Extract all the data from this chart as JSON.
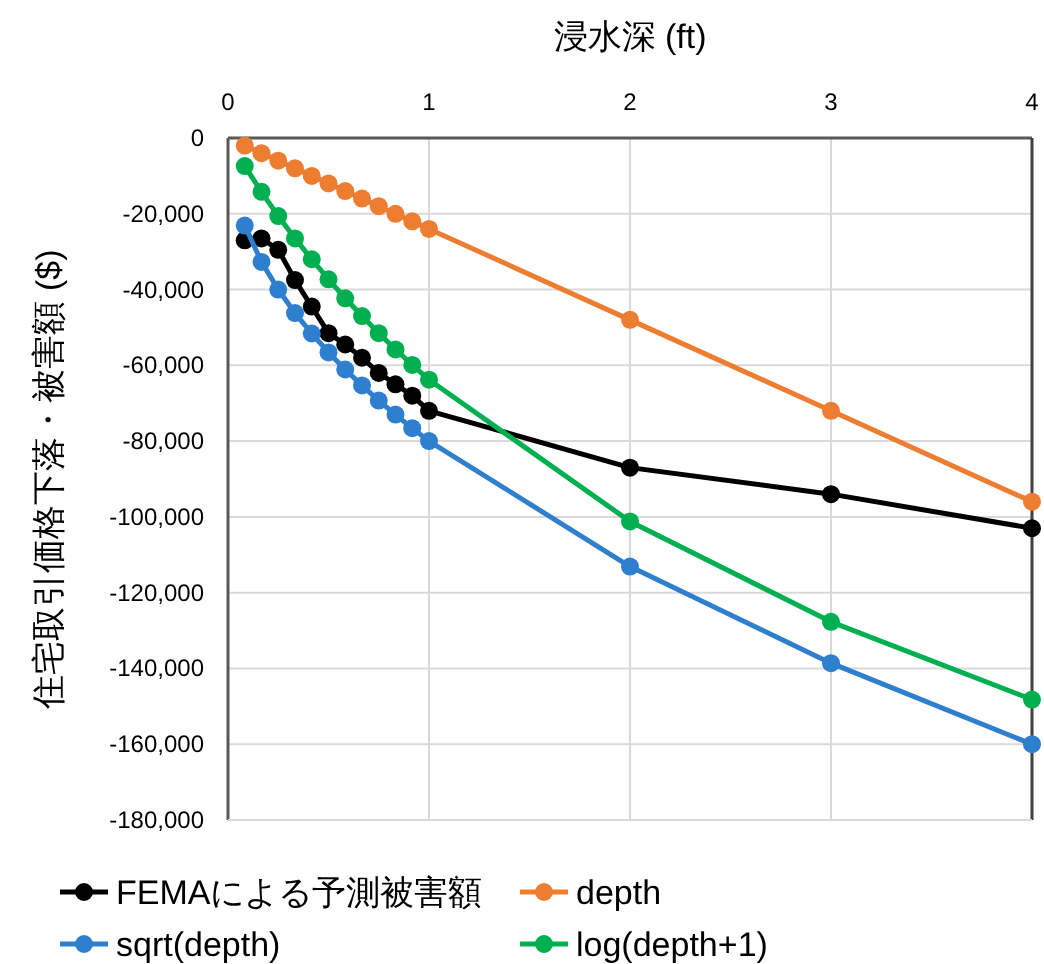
{
  "chart_data": {
    "type": "line",
    "xlabel": "浸水深 (ft)",
    "ylabel": "住宅取引価格下落・被害額 ($)",
    "x": [
      0.0833,
      0.1667,
      0.25,
      0.3333,
      0.4167,
      0.5,
      0.5833,
      0.6667,
      0.75,
      0.8333,
      0.9167,
      1,
      2,
      3,
      4
    ],
    "series": [
      {
        "name": "FEMAによる予測被害額",
        "color": "#000000",
        "values": [
          -27000,
          -26500,
          -29500,
          -37500,
          -44500,
          -51500,
          -54500,
          -58000,
          -62000,
          -65000,
          -68000,
          -72000,
          -87000,
          -94000,
          -103000
        ]
      },
      {
        "name": "depth",
        "color": "#ed7d31",
        "values": [
          -2000,
          -4000,
          -6000,
          -8000,
          -10000,
          -12000,
          -14000,
          -16000,
          -18000,
          -20000,
          -22000,
          -24000,
          -48000,
          -72000,
          -96000
        ]
      },
      {
        "name": "sqrt(depth)",
        "color": "#2f7fcf",
        "values": [
          -23100,
          -32700,
          -40000,
          -46200,
          -51600,
          -56600,
          -61100,
          -65300,
          -69300,
          -73000,
          -76600,
          -80000,
          -113100,
          -138600,
          -160000
        ]
      },
      {
        "name": "log(depth+1)",
        "color": "#00b050",
        "values": [
          -7400,
          -14200,
          -20600,
          -26500,
          -32000,
          -37300,
          -42300,
          -47000,
          -51500,
          -55800,
          -59900,
          -63800,
          -101200,
          -127700,
          -148200
        ]
      }
    ],
    "xlim": [
      0,
      4
    ],
    "xticks": [
      0,
      1,
      2,
      3,
      4
    ],
    "ylim": [
      -180000,
      0
    ],
    "yticks": [
      {
        "value": 0,
        "label": "0"
      },
      {
        "value": -20000,
        "label": "-20,000"
      },
      {
        "value": -40000,
        "label": "-40,000"
      },
      {
        "value": -60000,
        "label": "-60,000"
      },
      {
        "value": -80000,
        "label": "-80,000"
      },
      {
        "value": -100000,
        "label": "-100,000"
      },
      {
        "value": -120000,
        "label": "-120,000"
      },
      {
        "value": -140000,
        "label": "-140,000"
      },
      {
        "value": -160000,
        "label": "-160,000"
      },
      {
        "value": -180000,
        "label": "-180,000"
      }
    ],
    "grid": true,
    "legend": "bottom",
    "marker": "circle",
    "line_style": "solid"
  }
}
